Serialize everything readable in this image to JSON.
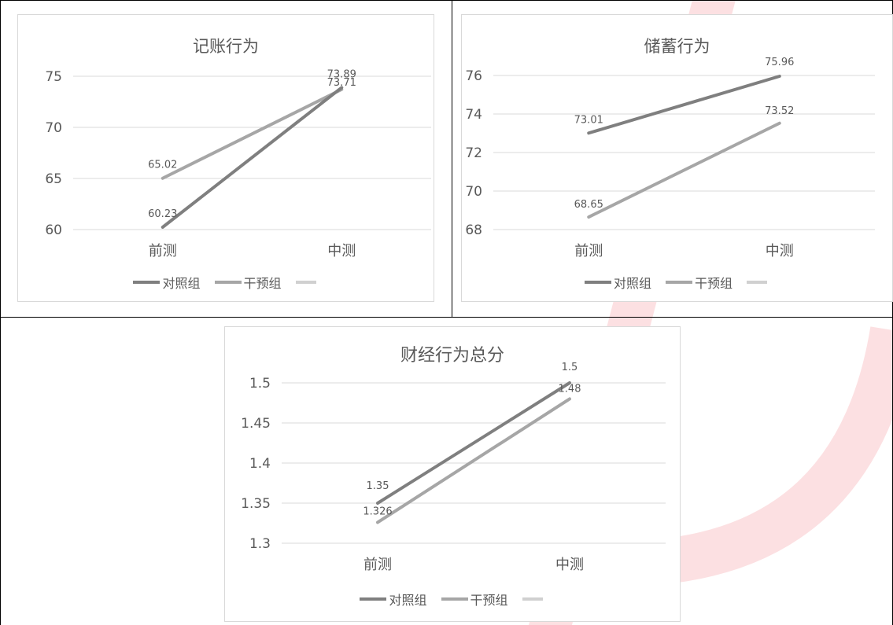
{
  "colors": {
    "control": "#7f7f7f",
    "intervention": "#a6a6a6",
    "third_series": "#d0d0d0",
    "gridline": "#d9d9d9",
    "text": "#595959",
    "watermark": "#e60012"
  },
  "chart_data": [
    {
      "type": "line",
      "title": "记账行为",
      "categories": [
        "前测",
        "中测"
      ],
      "yticks": [
        "60",
        "65",
        "70",
        "75"
      ],
      "ylim": [
        60,
        75
      ],
      "grid": true,
      "legend_position": "bottom",
      "series": [
        {
          "name": "对照组",
          "values": [
            60.23,
            73.89
          ],
          "labels": [
            "60.23",
            "73.89"
          ]
        },
        {
          "name": "干预组",
          "values": [
            65.02,
            73.71
          ],
          "labels": [
            "65.02",
            "73.71"
          ]
        }
      ],
      "extra_legend_entry": ""
    },
    {
      "type": "line",
      "title": "储蓄行为",
      "categories": [
        "前测",
        "中测"
      ],
      "yticks": [
        "68",
        "70",
        "72",
        "74",
        "76"
      ],
      "ylim": [
        68,
        76
      ],
      "grid": true,
      "legend_position": "bottom",
      "series": [
        {
          "name": "对照组",
          "values": [
            73.01,
            75.96
          ],
          "labels": [
            "73.01",
            "75.96"
          ]
        },
        {
          "name": "干预组",
          "values": [
            68.65,
            73.52
          ],
          "labels": [
            "68.65",
            "73.52"
          ]
        }
      ],
      "extra_legend_entry": ""
    },
    {
      "type": "line",
      "title": "财经行为总分",
      "categories": [
        "前测",
        "中测"
      ],
      "yticks": [
        "1.3",
        "1.35",
        "1.4",
        "1.45",
        "1.5"
      ],
      "ylim": [
        1.3,
        1.5
      ],
      "grid": true,
      "legend_position": "bottom",
      "series": [
        {
          "name": "对照组",
          "values": [
            1.35,
            1.5
          ],
          "labels": [
            "1.35",
            "1.5"
          ]
        },
        {
          "name": "干预组",
          "values": [
            1.326,
            1.48
          ],
          "labels": [
            "1.326",
            "1.48"
          ]
        }
      ],
      "extra_legend_entry": ""
    }
  ]
}
